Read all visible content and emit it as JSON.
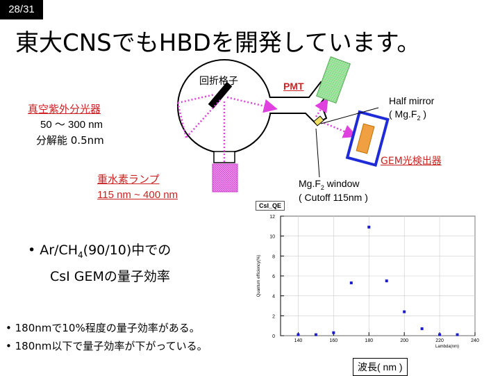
{
  "slide": {
    "number": "28/31",
    "title": "東大CNSでもHBDを開発しています。"
  },
  "labels": {
    "grating": "回折格子",
    "pmt": "PMT",
    "spectrometer": "真空紫外分光器",
    "range": "50 ～ 300 nm",
    "resolution": "分解能 0.5nm",
    "half_mirror": "Half mirror",
    "half_mirror_mat": "( Mg.F",
    "half_mirror_sub": "2",
    "half_mirror_end": " )",
    "gem": "GEM光検出器",
    "lamp": "重水素ランプ",
    "lamp_range": "115 nm ~ 400 nm",
    "window": "Mg.F",
    "window_sub": "2",
    "window_end": " window",
    "cutoff": "( Cutoff 115nm )"
  },
  "bullets": {
    "gas_a": "Ar/CH",
    "gas_sub": "4",
    "gas_b": "(90/10)中での",
    "gas_line2": "CsI GEMの量子効率",
    "note1": "180nmで10%程度の量子効率がある。",
    "note2": "180nm以下で量子効率が下がっている。"
  },
  "colors": {
    "red": "#cc2222",
    "blue": "#1e2bd6",
    "magenta": "#e040e0",
    "pmt_green": "#90e090",
    "gem_orange": "#f0a040",
    "marker": "#1c1ccc"
  },
  "chart_data": {
    "type": "scatter",
    "title": "CsI_QE",
    "xlabel": "Lambda(nm)",
    "ylabel": "Quantum efficiency(%)",
    "caption": "波長( nm )",
    "xlim": [
      130,
      240
    ],
    "ylim": [
      0,
      12
    ],
    "xticks": [
      "140",
      "160",
      "180",
      "200",
      "220",
      "240"
    ],
    "yticks": [
      "0",
      "2",
      "4",
      "6",
      "8",
      "10",
      "12"
    ],
    "x": [
      140,
      150,
      160,
      170,
      180,
      190,
      200,
      210,
      220,
      230
    ],
    "y": [
      0.1,
      0.1,
      0.3,
      5.3,
      10.9,
      5.5,
      2.4,
      0.7,
      0.1,
      0.1
    ],
    "grid": true
  }
}
